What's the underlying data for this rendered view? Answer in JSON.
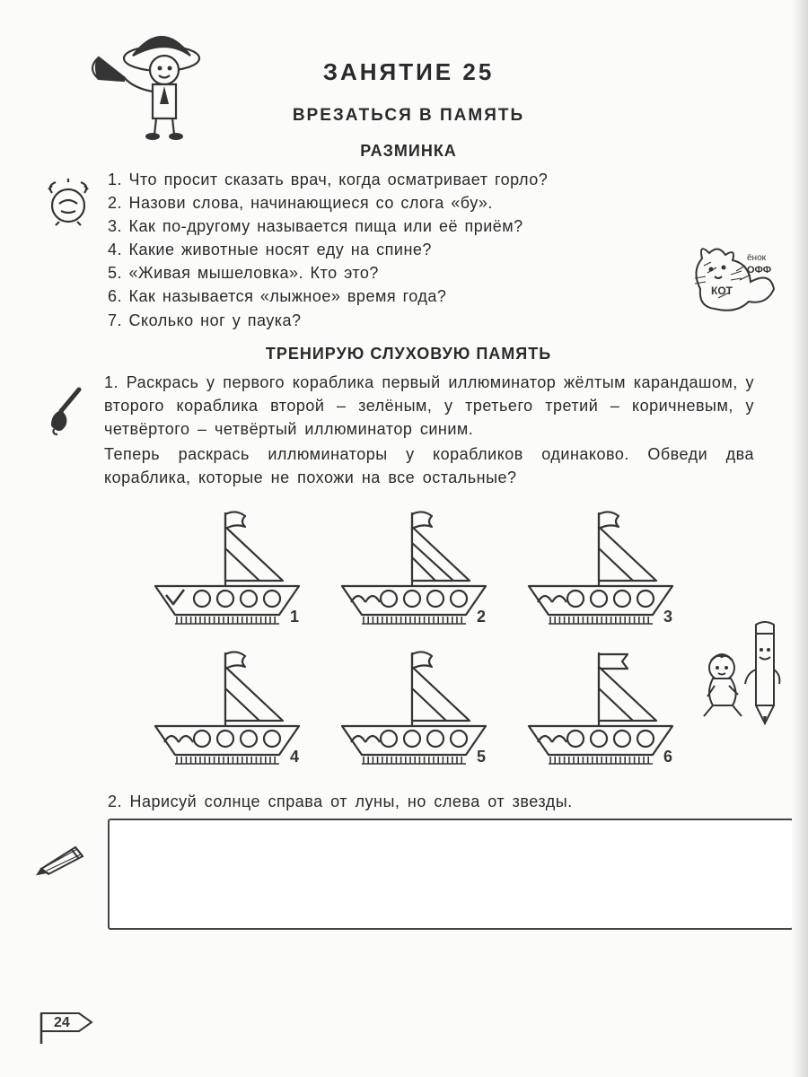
{
  "title": "ЗАНЯТИЕ  25",
  "subtitle": "ВРЕЗАТЬСЯ В ПАМЯТЬ",
  "section_warmup": "РАЗМИНКА",
  "warmup_questions": [
    "1. Что просит сказать врач, когда осматривает горло?",
    "2. Назови слова, начинающиеся со слога «бу».",
    "3. Как по-другому называется пища или её приём?",
    "4. Какие животные носят еду на спине?",
    "5. «Живая мышеловка». Кто это?",
    "6. Как называется «лыжное» время года?",
    "7. Сколько ног у паука?"
  ],
  "section_memory": "ТРЕНИРУЮ СЛУХОВУЮ ПАМЯТЬ",
  "task1_p1": "1. Раскрась у первого кораблика первый иллюминатор жёлтым карандашом, у второго кораблика второй – зелёным, у третьего третий – коричневым, у четвёртого – четвёртый иллюминатор синим.",
  "task1_p2": "Теперь раскрась иллюминаторы у корабликов одинаково. Обведи два кораблика, которые не похожи на все остальные?",
  "ships": {
    "count": 6,
    "labels": [
      "1",
      "2",
      "3",
      "4",
      "5",
      "6"
    ],
    "flag_type": [
      "wavy",
      "wavy",
      "wavy",
      "wavy",
      "wavy",
      "rect"
    ],
    "sail_stripe": [
      "one",
      "two",
      "one",
      "one",
      "one",
      "one"
    ],
    "hull_mark": [
      "check",
      "arch",
      "arch",
      "arch",
      "arch",
      "arch"
    ],
    "portholes": 4,
    "stroke": "#353535",
    "stroke_width": 2.2
  },
  "task2": "2. Нарисуй солнце справа от луны, но слева от звезды.",
  "page_number": "24",
  "cat_labels": {
    "top": "ёнок",
    "mid": "ОФФ",
    "bottom": "КОТ"
  },
  "colors": {
    "page_bg": "#fbfbfa",
    "text": "#2a2a2a",
    "stroke": "#353535",
    "box_border": "#454545"
  },
  "typography": {
    "title_fontsize": 26,
    "subtitle_fontsize": 19,
    "section_fontsize": 18,
    "body_fontsize": 18
  }
}
